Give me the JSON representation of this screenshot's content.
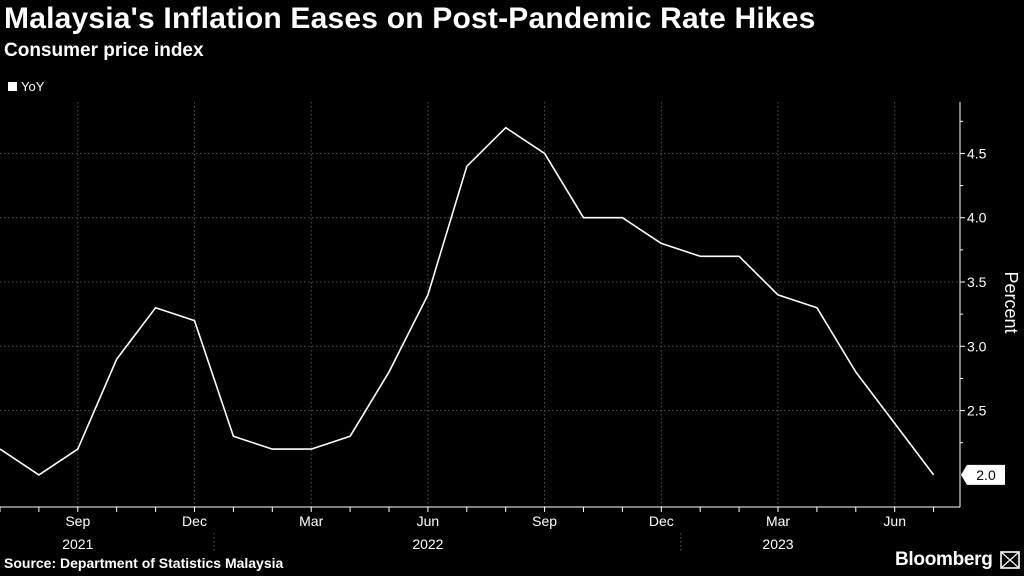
{
  "header": {
    "title": "Malaysia's Inflation Eases on Post-Pandemic Rate Hikes",
    "subtitle": "Consumer price index"
  },
  "legend": {
    "label": "YoY",
    "swatch_color": "#ffffff"
  },
  "footer": {
    "source": "Source: Department of Statistics Malaysia",
    "brand": "Bloomberg"
  },
  "colors": {
    "background": "#000000",
    "line": "#ffffff",
    "grid": "#555555",
    "text": "#ffffff"
  },
  "chart_data": {
    "type": "line",
    "title": "Malaysia's Inflation Eases on Post-Pandemic Rate Hikes",
    "subtitle": "Consumer price index",
    "xlabel": "",
    "ylabel": "Percent",
    "ylim": [
      1.75,
      4.9
    ],
    "yticks": [
      2.5,
      3.0,
      3.5,
      4.0,
      4.5
    ],
    "y_tick_labels": [
      "2.5",
      "3.0",
      "3.5",
      "4.0",
      "4.5"
    ],
    "last_value_label": "2.0",
    "grid": true,
    "legend_position": "top-left",
    "series": [
      {
        "name": "YoY",
        "x": [
          "2021-07",
          "2021-08",
          "2021-09",
          "2021-10",
          "2021-11",
          "2021-12",
          "2022-01",
          "2022-02",
          "2022-03",
          "2022-04",
          "2022-05",
          "2022-06",
          "2022-07",
          "2022-08",
          "2022-09",
          "2022-10",
          "2022-11",
          "2022-12",
          "2023-01",
          "2023-02",
          "2023-03",
          "2023-04",
          "2023-05",
          "2023-06",
          "2023-07"
        ],
        "values": [
          2.2,
          2.0,
          2.2,
          2.9,
          3.3,
          3.2,
          2.3,
          2.2,
          2.2,
          2.3,
          2.8,
          3.4,
          4.4,
          4.7,
          4.5,
          4.0,
          4.0,
          3.8,
          3.7,
          3.7,
          3.4,
          3.3,
          2.8,
          2.4,
          2.0
        ]
      }
    ],
    "x_month_ticks": [
      {
        "index": 2,
        "label": "Sep"
      },
      {
        "index": 5,
        "label": "Dec"
      },
      {
        "index": 8,
        "label": "Mar"
      },
      {
        "index": 11,
        "label": "Jun"
      },
      {
        "index": 14,
        "label": "Sep"
      },
      {
        "index": 17,
        "label": "Dec"
      },
      {
        "index": 20,
        "label": "Mar"
      },
      {
        "index": 23,
        "label": "Jun"
      }
    ],
    "x_year_labels": [
      {
        "index": 2,
        "label": "2021"
      },
      {
        "index": 11,
        "label": "2022"
      },
      {
        "index": 20,
        "label": "2023"
      }
    ],
    "year_boundaries": [
      5.5,
      17.5
    ]
  }
}
